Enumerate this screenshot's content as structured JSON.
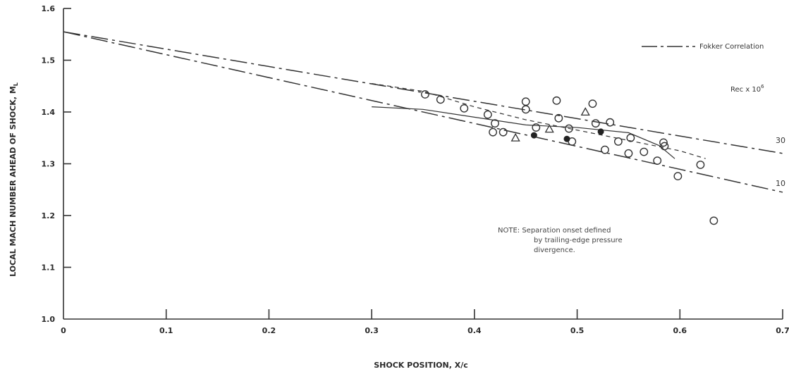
{
  "chart_data": {
    "type": "scatter",
    "xlabel": "SHOCK POSITION, X/c",
    "ylabel": "LOCAL MACH NUMBER AHEAD OF SHOCK, M",
    "ylabel_subscript": "L",
    "xlim": [
      0,
      0.7
    ],
    "ylim": [
      1.0,
      1.6
    ],
    "x_ticks": [
      "0",
      "0.1",
      "0.2",
      "0.3",
      "0.4",
      "0.5",
      "0.6",
      "0.7"
    ],
    "y_ticks": [
      "1.0",
      "1.1",
      "1.2",
      "1.3",
      "1.4",
      "1.5",
      "1.6"
    ],
    "grid": false,
    "legend": {
      "position": "top-right",
      "entry": "Fokker Correlation",
      "reynolds_header": "Rec x 10"
    },
    "correlation_lines": [
      {
        "label": "30",
        "points": [
          [
            0,
            1.555
          ],
          [
            0.7,
            1.32
          ]
        ]
      },
      {
        "label": "10",
        "points": [
          [
            0,
            1.555
          ],
          [
            0.7,
            1.245
          ]
        ]
      },
      {
        "label": "",
        "points": [
          [
            0.3,
            1.41
          ],
          [
            0.35,
            1.405
          ],
          [
            0.4,
            1.39
          ],
          [
            0.45,
            1.375
          ],
          [
            0.5,
            1.37
          ],
          [
            0.55,
            1.36
          ],
          [
            0.58,
            1.335
          ],
          [
            0.595,
            1.31
          ]
        ]
      },
      {
        "label": "",
        "points": [
          [
            0.3,
            1.455
          ],
          [
            0.35,
            1.44
          ],
          [
            0.4,
            1.41
          ],
          [
            0.45,
            1.385
          ],
          [
            0.5,
            1.365
          ],
          [
            0.55,
            1.345
          ],
          [
            0.6,
            1.325
          ],
          [
            0.625,
            1.31
          ]
        ]
      }
    ],
    "series": [
      {
        "marker": "circle",
        "points": [
          [
            0.352,
            1.434
          ],
          [
            0.367,
            1.424
          ],
          [
            0.39,
            1.407
          ],
          [
            0.413,
            1.395
          ],
          [
            0.418,
            1.361
          ],
          [
            0.42,
            1.378
          ],
          [
            0.428,
            1.361
          ],
          [
            0.45,
            1.42
          ],
          [
            0.45,
            1.405
          ],
          [
            0.46,
            1.37
          ],
          [
            0.48,
            1.422
          ],
          [
            0.482,
            1.388
          ],
          [
            0.492,
            1.368
          ],
          [
            0.495,
            1.343
          ],
          [
            0.515,
            1.416
          ],
          [
            0.518,
            1.378
          ],
          [
            0.527,
            1.327
          ],
          [
            0.532,
            1.38
          ],
          [
            0.54,
            1.343
          ],
          [
            0.55,
            1.32
          ],
          [
            0.552,
            1.35
          ],
          [
            0.565,
            1.323
          ],
          [
            0.578,
            1.306
          ],
          [
            0.584,
            1.341
          ],
          [
            0.585,
            1.334
          ],
          [
            0.598,
            1.276
          ],
          [
            0.62,
            1.298
          ],
          [
            0.633,
            1.19
          ]
        ]
      },
      {
        "marker": "triangle",
        "points": [
          [
            0.44,
            1.35
          ],
          [
            0.473,
            1.367
          ],
          [
            0.508,
            1.4
          ]
        ]
      },
      {
        "marker": "filled-circle",
        "points": [
          [
            0.458,
            1.355
          ],
          [
            0.49,
            1.348
          ],
          [
            0.523,
            1.362
          ]
        ]
      }
    ],
    "annotations": {
      "note_lines": [
        "NOTE:  Separation onset defined",
        "by trailing-edge pressure",
        "divergence."
      ]
    }
  }
}
